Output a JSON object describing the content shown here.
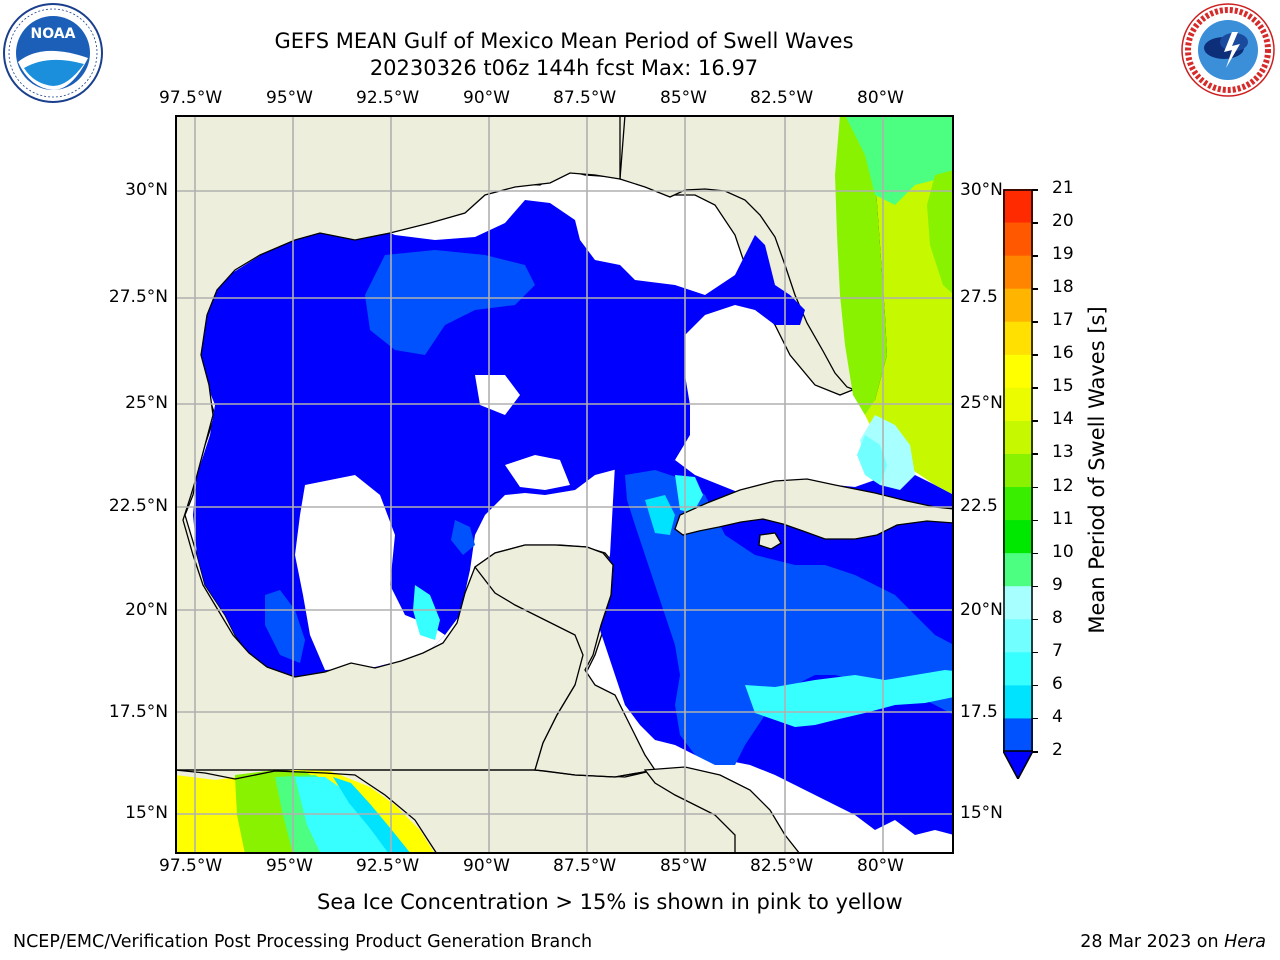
{
  "header": {
    "title_line1": "GEFS MEAN Gulf of Mexico Mean Period of Swell Waves",
    "title_line2": "20230326 t06z 144h fcst   Max: 16.97"
  },
  "logos": {
    "left": {
      "name": "noaa-logo",
      "text": "NOAA",
      "ring_text": "NATIONAL OCEANIC AND ATMOSPHERIC ADMINISTRATION · U.S. DEPARTMENT OF COMMERCE"
    },
    "right": {
      "name": "nws-logo",
      "ring_text": "NATIONAL WEATHER SERVICE"
    }
  },
  "map": {
    "lon_labels": [
      "97.5°W",
      "95°W",
      "92.5°W",
      "90°W",
      "87.5°W",
      "85°W",
      "82.5°W",
      "80°W"
    ],
    "lat_labels_left": [
      "30°N",
      "27.5°N",
      "25°N",
      "22.5°N",
      "20°N",
      "17.5°N",
      "15°N"
    ],
    "lat_labels_right": [
      "30°N",
      "27.5",
      "25°N",
      "22.5",
      "20°N",
      "17.5",
      "15°N"
    ],
    "colors": {
      "land": "#eeeedd",
      "grid": "#b0b0b0",
      "coast": "#000000"
    }
  },
  "colorbar": {
    "label": "Mean Period of Swell Waves [s]",
    "ticks": [
      "2",
      "4",
      "6",
      "7",
      "8",
      "9",
      "10",
      "11",
      "12",
      "13",
      "14",
      "15",
      "16",
      "17",
      "18",
      "19",
      "20",
      "21"
    ],
    "colors": [
      "#0052ff",
      "#00e3ff",
      "#38ffff",
      "#72ffff",
      "#a8ffff",
      "#4cff80",
      "#00e800",
      "#3aee00",
      "#88f200",
      "#c6f800",
      "#ecfc00",
      "#ffff00",
      "#ffe000",
      "#ffb400",
      "#ff8400",
      "#ff5800",
      "#ff2a00"
    ],
    "extend_color": "#0000ff"
  },
  "notes": {
    "sea_ice": "Sea Ice Concentration > 15% is shown in pink to yellow"
  },
  "footer": {
    "left": "NCEP/EMC/Verification Post Processing Product Generation Branch",
    "right_prefix": "28 Mar 2023 on ",
    "right_machine": "Hera"
  }
}
